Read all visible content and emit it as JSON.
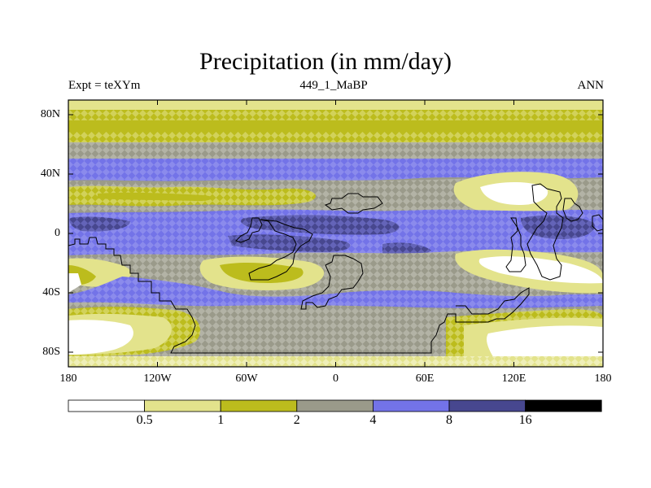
{
  "title": "Precipitation (in mm/day)",
  "subtitle_left": "Expt = teXYm",
  "subtitle_center": "449_1_MaBP",
  "subtitle_right": "ANN",
  "y_ticks": [
    "80N",
    "40N",
    "0",
    "40S",
    "80S"
  ],
  "x_ticks": [
    "180",
    "120W",
    "60W",
    "0",
    "60E",
    "120E",
    "180"
  ],
  "colorbar": {
    "levels": [
      "0.5",
      "1",
      "2",
      "4",
      "8",
      "16"
    ],
    "colors": [
      "#ffffff",
      "#e3e38c",
      "#bcbc1d",
      "#9a9a8a",
      "#7373e8",
      "#47478f",
      "#000000"
    ]
  },
  "map_colors": {
    "white": "#ffffff",
    "light_yellow": "#e3e38c",
    "olive": "#bcbc1d",
    "gray": "#9a9a8a",
    "light_blue": "#7373e8",
    "dark_blue": "#47478f"
  }
}
